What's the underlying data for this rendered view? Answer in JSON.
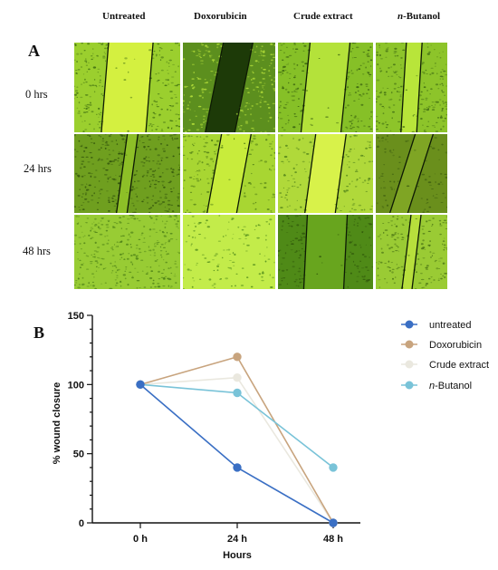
{
  "figure": {
    "panel_a_label": "A",
    "panel_b_label": "B",
    "columns": [
      "Untreated",
      "Doxorubicin",
      "Crude extract",
      "n-Butanol"
    ],
    "rows": [
      "0 hrs",
      "24  hrs",
      "48 hrs"
    ],
    "micrographs": [
      {
        "row": 0,
        "col": 0,
        "bg": "#9bcf2e",
        "gap": "#d4f040",
        "cells": "#3c6b10",
        "density": 0.55,
        "gap_width": 0.42,
        "tilt": 4
      },
      {
        "row": 0,
        "col": 1,
        "bg": "#5c8f1e",
        "gap": "#1d3a08",
        "cells": "#b9e33c",
        "density": 0.5,
        "gap_width": 0.32,
        "tilt": 10
      },
      {
        "row": 0,
        "col": 2,
        "bg": "#86c027",
        "gap": "#b4e23a",
        "cells": "#355d0e",
        "density": 0.55,
        "gap_width": 0.42,
        "tilt": 5
      },
      {
        "row": 0,
        "col": 3,
        "bg": "#8dc42a",
        "gap": "#b8e53a",
        "cells": "#3f6c12",
        "density": 0.55,
        "gap_width": 0.22,
        "tilt": 3
      },
      {
        "row": 1,
        "col": 0,
        "bg": "#6f9f1f",
        "gap": "#8dbf27",
        "cells": "#2c4d0a",
        "density": 0.6,
        "gap_width": 0.1,
        "tilt": 6
      },
      {
        "row": 1,
        "col": 1,
        "bg": "#a8d632",
        "gap": "#c8ec3b",
        "cells": "#4d7b14",
        "density": 0.4,
        "gap_width": 0.32,
        "tilt": 8
      },
      {
        "row": 1,
        "col": 2,
        "bg": "#b0d93a",
        "gap": "#d8f24a",
        "cells": "#4d7f18",
        "density": 0.35,
        "gap_width": 0.32,
        "tilt": 6
      },
      {
        "row": 1,
        "col": 3,
        "bg": "#6a8f1c",
        "gap": "#7fa524",
        "cells": "#3e5f10",
        "density": 0.3,
        "gap_width": 0.25,
        "tilt": 14
      },
      {
        "row": 2,
        "col": 0,
        "bg": "#98cc34",
        "gap": "#98cc34",
        "cells": "#4a7e15",
        "density": 0.6,
        "gap_width": 0,
        "tilt": 0
      },
      {
        "row": 2,
        "col": 1,
        "bg": "#c3ec4a",
        "gap": "#c3ec4a",
        "cells": "#4f8a1a",
        "density": 0.25,
        "gap_width": 0,
        "tilt": 0
      },
      {
        "row": 2,
        "col": 2,
        "bg": "#4f8a17",
        "gap": "#68a51e",
        "cells": "#2e560a",
        "density": 0.45,
        "gap_width": 0.42,
        "tilt": 2
      },
      {
        "row": 2,
        "col": 3,
        "bg": "#9acb34",
        "gap": "#b7df3c",
        "cells": "#456f12",
        "density": 0.5,
        "gap_width": 0.14,
        "tilt": 5
      }
    ]
  },
  "chart_data": {
    "type": "line",
    "x": [
      "0 h",
      "24 h",
      "48 h"
    ],
    "xlabel": "Hours",
    "ylabel": "% wound closure",
    "ylim": [
      0,
      150
    ],
    "yticks": [
      "0",
      "50",
      "100",
      "150"
    ],
    "legend_position": "right",
    "series": [
      {
        "name": "untreated",
        "values": [
          100,
          40,
          0
        ],
        "color": "#3a6fc4"
      },
      {
        "name": "Doxorubicin",
        "values": [
          100,
          120,
          0
        ],
        "color": "#c8a47e"
      },
      {
        "name": "Crude extract",
        "values": [
          100,
          105,
          0
        ],
        "color": "#eae8df"
      },
      {
        "name": "n-Butanol",
        "values": [
          100,
          94,
          40
        ],
        "color": "#79c3d8"
      }
    ]
  }
}
